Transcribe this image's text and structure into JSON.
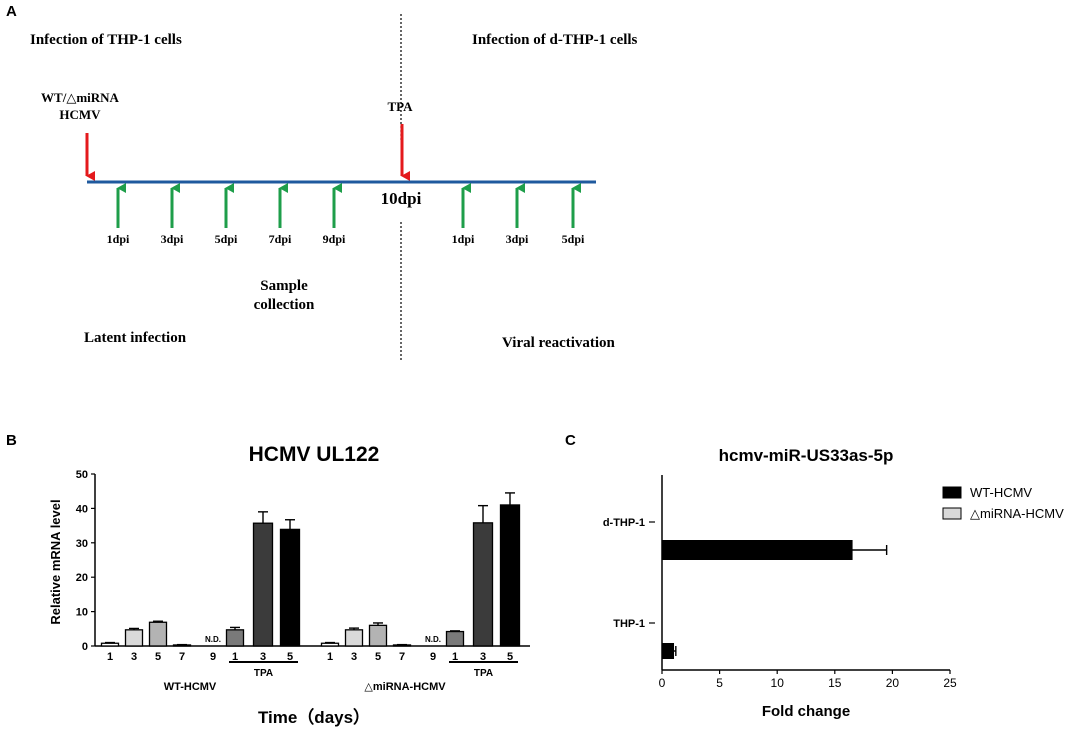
{
  "panel_a": {
    "panel_label": "A",
    "left_title": "Infection of THP-1 cells",
    "right_title": "Infection of d-THP-1 cells",
    "virus_label_line1": "WT/△miRNA",
    "virus_label_line2": "HCMV",
    "tpa_label": "TPA",
    "center_label": "10dpi",
    "sample_label_line1": "Sample",
    "sample_label_line2": "collection",
    "left_phase": "Latent infection",
    "right_phase": "Viral reactivation",
    "left_timepoints": [
      "1dpi",
      "3dpi",
      "5dpi",
      "7dpi",
      "9dpi"
    ],
    "right_timepoints": [
      "1dpi",
      "3dpi",
      "5dpi"
    ],
    "colors": {
      "timeline": "#1f5a9e",
      "infection_arrow": "#e41a1c",
      "sampling_arrow": "#1e9e4a"
    }
  },
  "chart_data": [
    {
      "panel_label": "B",
      "type": "bar",
      "title": "HCMV UL122",
      "ylabel": "Relative mRNA level",
      "xlabel": "Time（days）",
      "ylim": [
        0,
        50
      ],
      "yticks": [
        0,
        10,
        20,
        30,
        40,
        50
      ],
      "groups": [
        {
          "name": "WT-HCMV",
          "treatment_label": "TPA",
          "bars": [
            {
              "label": "1",
              "value": 0.8,
              "err": 0.2,
              "fill": "#ffffff"
            },
            {
              "label": "3",
              "value": 4.7,
              "err": 0.4,
              "fill": "#d9d9d9"
            },
            {
              "label": "5",
              "value": 6.9,
              "err": 0.3,
              "fill": "#b3b3b3"
            },
            {
              "label": "7",
              "value": 0.3,
              "err": 0.1,
              "fill": "#8c8c8c"
            },
            {
              "label": "9",
              "value": 0,
              "err": 0,
              "fill": "#666666",
              "note": "N.D."
            },
            {
              "label": "1",
              "value": 4.7,
              "err": 0.7,
              "fill": "#7a7a7a"
            },
            {
              "label": "3",
              "value": 35.7,
              "err": 3.3,
              "fill": "#3b3b3b"
            },
            {
              "label": "5",
              "value": 33.9,
              "err": 2.8,
              "fill": "#000000"
            }
          ]
        },
        {
          "name": "△miRNA-HCMV",
          "treatment_label": "TPA",
          "bars": [
            {
              "label": "1",
              "value": 0.8,
              "err": 0.2,
              "fill": "#ffffff"
            },
            {
              "label": "3",
              "value": 4.7,
              "err": 0.5,
              "fill": "#d9d9d9"
            },
            {
              "label": "5",
              "value": 6.0,
              "err": 0.7,
              "fill": "#b3b3b3"
            },
            {
              "label": "7",
              "value": 0.3,
              "err": 0.1,
              "fill": "#8c8c8c"
            },
            {
              "label": "9",
              "value": 0,
              "err": 0,
              "fill": "#666666",
              "note": "N.D."
            },
            {
              "label": "1",
              "value": 4.2,
              "err": 0.2,
              "fill": "#7a7a7a"
            },
            {
              "label": "3",
              "value": 35.8,
              "err": 5.0,
              "fill": "#3b3b3b"
            },
            {
              "label": "5",
              "value": 41.0,
              "err": 3.5,
              "fill": "#000000"
            }
          ]
        }
      ]
    },
    {
      "panel_label": "C",
      "type": "bar",
      "orientation": "horizontal",
      "title": "hcmv-miR-US33as-5p",
      "xlabel": "Fold change",
      "xlim": [
        0,
        25
      ],
      "xticks": [
        0,
        5,
        10,
        15,
        20,
        25
      ],
      "categories": [
        "d-THP-1",
        "THP-1"
      ],
      "legend": [
        "WT-HCMV",
        "△miRNA-HCMV"
      ],
      "legend_position": "top-right",
      "series": [
        {
          "name": "WT-HCMV",
          "color": "#000000",
          "values": [
            16.5,
            1.0
          ],
          "err": [
            3.0,
            0.2
          ]
        },
        {
          "name": "△miRNA-HCMV",
          "color": "#d9d9d9",
          "values": [
            0,
            0
          ],
          "err": [
            0,
            0
          ]
        }
      ]
    }
  ]
}
